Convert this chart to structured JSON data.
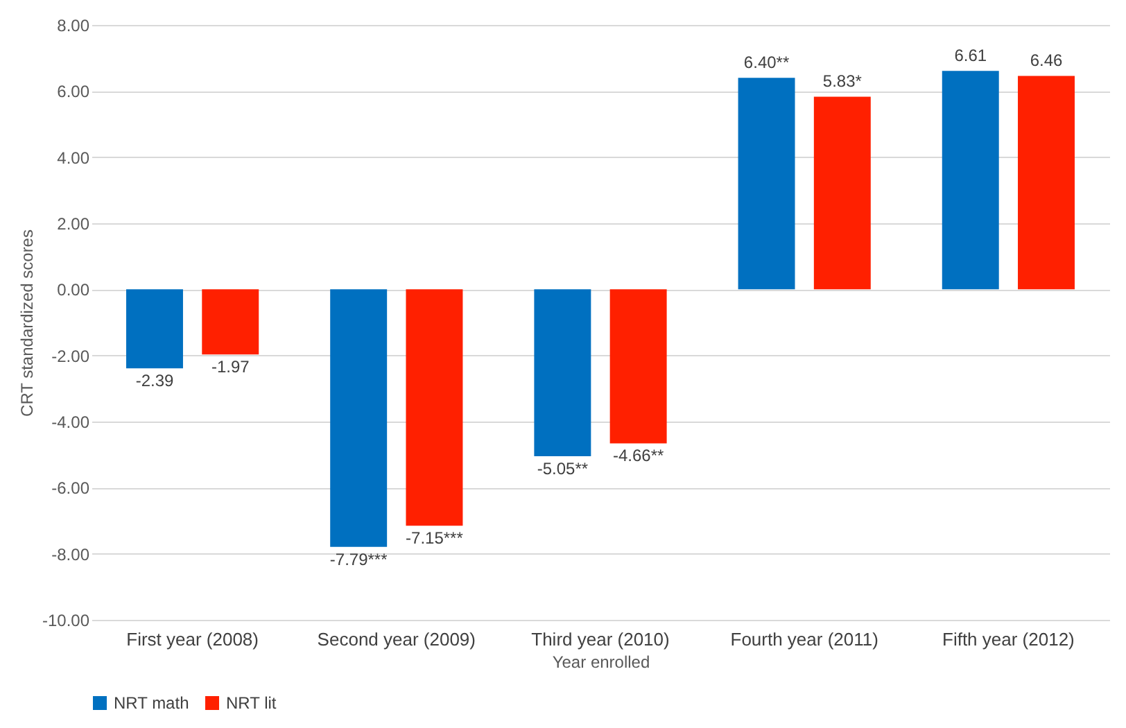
{
  "chart_data": {
    "type": "bar",
    "categories": [
      "First year (2008)",
      "Second year (2009)",
      "Third year (2010)",
      "Fourth year (2011)",
      "Fifth year (2012)"
    ],
    "series": [
      {
        "name": "NRT math",
        "color": "#0070c0",
        "values": [
          -2.39,
          -7.79,
          -5.05,
          6.4,
          6.61
        ],
        "value_labels": [
          "-2.39",
          "-7.79***",
          "-5.05**",
          "6.40**",
          "6.61"
        ]
      },
      {
        "name": "NRT lit",
        "color": "#ff2000",
        "values": [
          -1.97,
          -7.15,
          -4.66,
          5.83,
          6.46
        ],
        "value_labels": [
          "-1.97",
          "-7.15***",
          "-4.66**",
          "5.83*",
          "6.46"
        ]
      }
    ],
    "xlabel": "Year enrolled",
    "ylabel": "CRT standardized scores",
    "ylim": [
      -10,
      8
    ],
    "yticks": [
      {
        "value": -10,
        "label": "-10.00"
      },
      {
        "value": -8,
        "label": "-8.00"
      },
      {
        "value": -6,
        "label": "-6.00"
      },
      {
        "value": -4,
        "label": "-4.00"
      },
      {
        "value": -2,
        "label": "-2.00"
      },
      {
        "value": 0,
        "label": "0.00"
      },
      {
        "value": 2,
        "label": "2.00"
      },
      {
        "value": 4,
        "label": "4.00"
      },
      {
        "value": 6,
        "label": "6.00"
      },
      {
        "value": 8,
        "label": "8.00"
      }
    ],
    "grid": "y",
    "legend": "bottom"
  }
}
